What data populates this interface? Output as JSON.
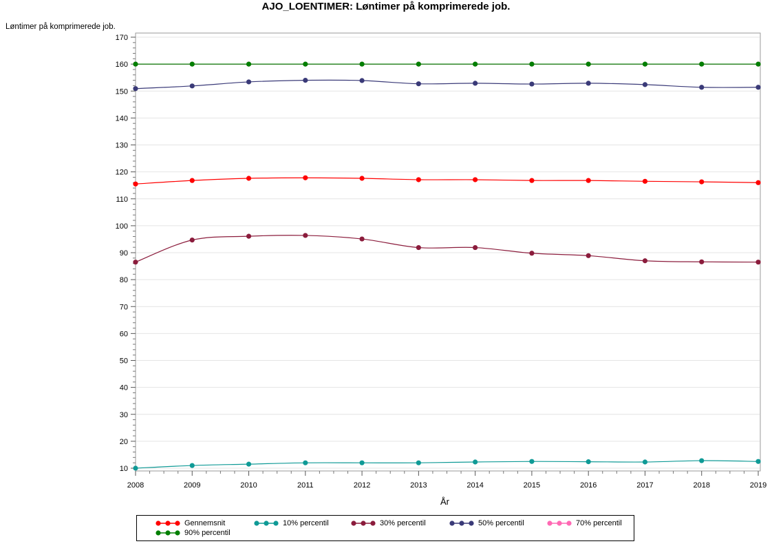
{
  "chart_data": {
    "type": "line",
    "title": "AJO_LOENTIMER: Løntimer på komprimerede job.",
    "xlabel": "År",
    "ylabel": "Løntimer på komprimerede job.",
    "x": [
      2008,
      2009,
      2010,
      2011,
      2012,
      2013,
      2014,
      2015,
      2016,
      2017,
      2018,
      2019
    ],
    "x_ticks": [
      "2008",
      "2009",
      "2010",
      "2011",
      "2012",
      "2013",
      "2014",
      "2015",
      "2016",
      "2017",
      "2018",
      "2019"
    ],
    "ylim": [
      10,
      170
    ],
    "y_ticks": [
      10,
      20,
      30,
      40,
      50,
      60,
      70,
      80,
      90,
      100,
      110,
      120,
      130,
      140,
      150,
      160,
      170
    ],
    "grid": true,
    "legend_position": "bottom",
    "series": [
      {
        "name": "Gennemsnit",
        "color": "#ff0000",
        "values": [
          115.5,
          116.8,
          117.6,
          117.8,
          117.6,
          117.1,
          117.1,
          116.8,
          116.8,
          116.5,
          116.3,
          116.0
        ]
      },
      {
        "name": "10% percentil",
        "color": "#0f9a96",
        "values": [
          10.0,
          11.0,
          11.5,
          12.0,
          12.0,
          12.0,
          12.3,
          12.5,
          12.4,
          12.3,
          12.8,
          12.5
        ]
      },
      {
        "name": "30% percentil",
        "color": "#8b1c3c",
        "values": [
          86.5,
          94.7,
          96.1,
          96.4,
          95.1,
          91.9,
          91.9,
          89.8,
          88.9,
          87.0,
          86.6,
          86.5
        ]
      },
      {
        "name": "50% percentil",
        "color": "#3a3a78",
        "values": [
          150.9,
          151.9,
          153.4,
          154.0,
          153.9,
          152.7,
          152.9,
          152.6,
          152.9,
          152.4,
          151.4,
          151.4
        ]
      },
      {
        "name": "70% percentil",
        "color": "#ff69b4",
        "values": [
          160.0,
          160.0,
          160.0,
          160.0,
          160.0,
          160.0,
          160.0,
          160.0,
          160.0,
          160.0,
          160.0,
          160.0
        ]
      },
      {
        "name": "90% percentil",
        "color": "#007f00",
        "values": [
          160.0,
          160.0,
          160.0,
          160.0,
          160.0,
          160.0,
          160.0,
          160.0,
          160.0,
          160.0,
          160.0,
          160.0
        ]
      }
    ]
  }
}
